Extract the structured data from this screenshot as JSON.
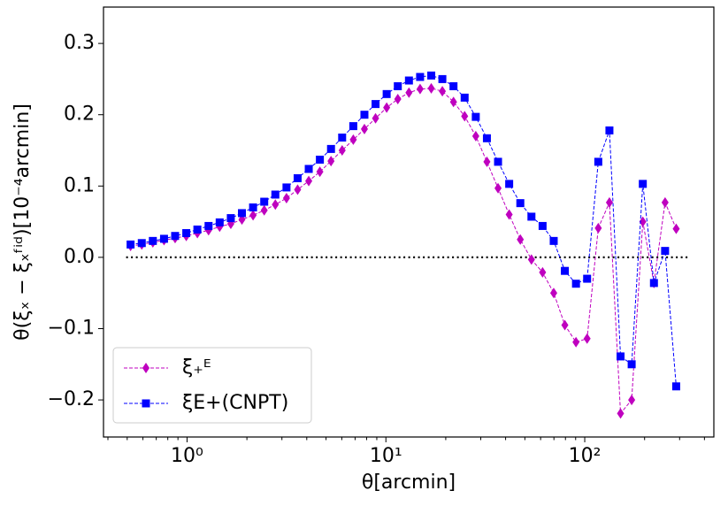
{
  "chart_data": {
    "type": "line",
    "xlabel": "θ[arcmin]",
    "ylabel": "θ(ξₓ − ξₓᶠⁱᵈ)[10⁻⁴arcmin]",
    "xscale": "log",
    "x": [
      0.52,
      0.592,
      0.673,
      0.766,
      0.871,
      0.991,
      1.127,
      1.283,
      1.459,
      1.66,
      1.888,
      2.148,
      2.444,
      2.78,
      3.163,
      3.598,
      4.093,
      4.656,
      5.297,
      6.026,
      6.856,
      7.799,
      8.872,
      10.09,
      11.48,
      13.06,
      14.86,
      16.91,
      19.23,
      21.88,
      24.89,
      28.32,
      32.21,
      36.65,
      41.69,
      47.43,
      53.95,
      61.38,
      69.83,
      79.44,
      90.37,
      102.8,
      117.0,
      133.1,
      151.4,
      172.2,
      195.9,
      222.9,
      253.6,
      288.4
    ],
    "series": [
      {
        "name": "ξ₊ᴱ",
        "color": "#bf00bf",
        "marker": "diamond",
        "values": [
          0.016,
          0.018,
          0.021,
          0.024,
          0.027,
          0.03,
          0.034,
          0.038,
          0.043,
          0.047,
          0.053,
          0.059,
          0.066,
          0.074,
          0.083,
          0.095,
          0.107,
          0.12,
          0.135,
          0.15,
          0.165,
          0.18,
          0.195,
          0.21,
          0.222,
          0.231,
          0.236,
          0.237,
          0.233,
          0.218,
          0.198,
          0.17,
          0.134,
          0.097,
          0.06,
          0.025,
          -0.003,
          -0.021,
          -0.05,
          -0.095,
          -0.119,
          -0.114,
          0.041,
          0.077,
          -0.219,
          -0.2,
          0.05,
          -0.036,
          0.077,
          0.04
        ]
      },
      {
        "name": "ξE+(CNPT)",
        "color": "#0000ff",
        "marker": "square",
        "values": [
          0.018,
          0.02,
          0.023,
          0.026,
          0.03,
          0.034,
          0.039,
          0.044,
          0.049,
          0.055,
          0.062,
          0.07,
          0.078,
          0.088,
          0.098,
          0.111,
          0.124,
          0.137,
          0.152,
          0.168,
          0.184,
          0.2,
          0.215,
          0.229,
          0.24,
          0.248,
          0.253,
          0.255,
          0.25,
          0.24,
          0.224,
          0.197,
          0.167,
          0.134,
          0.103,
          0.076,
          0.057,
          0.044,
          0.023,
          -0.019,
          -0.037,
          -0.03,
          0.134,
          0.178,
          -0.139,
          -0.15,
          0.103,
          -0.036,
          0.009,
          -0.181
        ]
      }
    ],
    "xlim": [
      0.38,
      446
    ],
    "xticks": [
      {
        "value": 1,
        "label": "10⁰"
      },
      {
        "value": 10,
        "label": "10¹"
      },
      {
        "value": 100,
        "label": "10²"
      }
    ],
    "xminorticks": [
      0.4,
      0.5,
      0.6,
      0.7,
      0.8,
      0.9,
      2,
      3,
      4,
      5,
      6,
      7,
      8,
      9,
      20,
      30,
      40,
      50,
      60,
      70,
      80,
      90,
      200,
      300,
      400
    ],
    "ylim": [
      -0.252,
      0.351
    ],
    "yticks": [
      {
        "value": -0.2,
        "label": "−0.2"
      },
      {
        "value": -0.1,
        "label": "−0.1"
      },
      {
        "value": 0,
        "label": "0.0"
      },
      {
        "value": 0.1,
        "label": "0.1"
      },
      {
        "value": 0.2,
        "label": "0.2"
      },
      {
        "value": 0.3,
        "label": "0.3"
      }
    ],
    "hline": 0,
    "legend": "lower left"
  }
}
